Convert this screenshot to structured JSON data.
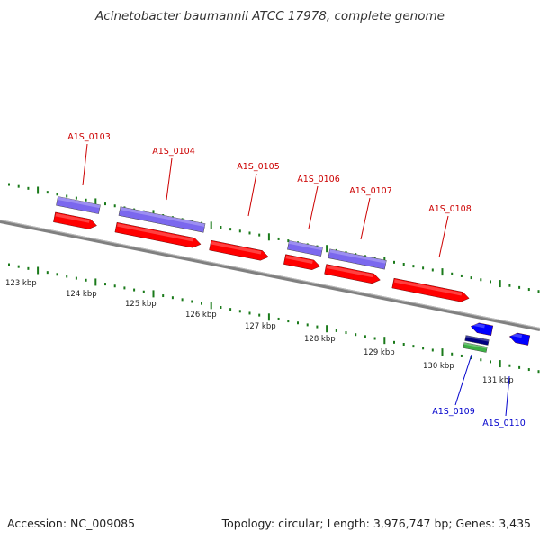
{
  "title": "Acinetobacter baumannii ATCC 17978, complete genome",
  "footer": {
    "accession": "Accession: NC_009085",
    "summary": "Topology: circular; Length: 3,976,747 bp; Genes: 3,435"
  },
  "colors": {
    "forward_cds": "#ff0000",
    "reverse_cds": "#0000ff",
    "feature_purple": "#7b68ee",
    "feature_navy": "#000080",
    "feature_green": "#3cb043",
    "tick": "#1a7a1a",
    "backbone": "#808080",
    "label_red": "#cc0000",
    "label_blue": "#0000cc"
  },
  "ruler": {
    "labels": [
      "123 kbp",
      "124 kbp",
      "125 kbp",
      "126 kbp",
      "127 kbp",
      "128 kbp",
      "129 kbp",
      "130 kbp",
      "131 kbp"
    ]
  },
  "genes": [
    {
      "label": "A1S_0103",
      "strand": "+"
    },
    {
      "label": "A1S_0104",
      "strand": "+"
    },
    {
      "label": "A1S_0105",
      "strand": "+"
    },
    {
      "label": "A1S_0106",
      "strand": "+"
    },
    {
      "label": "A1S_0107",
      "strand": "+"
    },
    {
      "label": "A1S_0108",
      "strand": "+"
    },
    {
      "label": "A1S_0109",
      "strand": "-"
    },
    {
      "label": "A1S_0110",
      "strand": "-"
    }
  ]
}
